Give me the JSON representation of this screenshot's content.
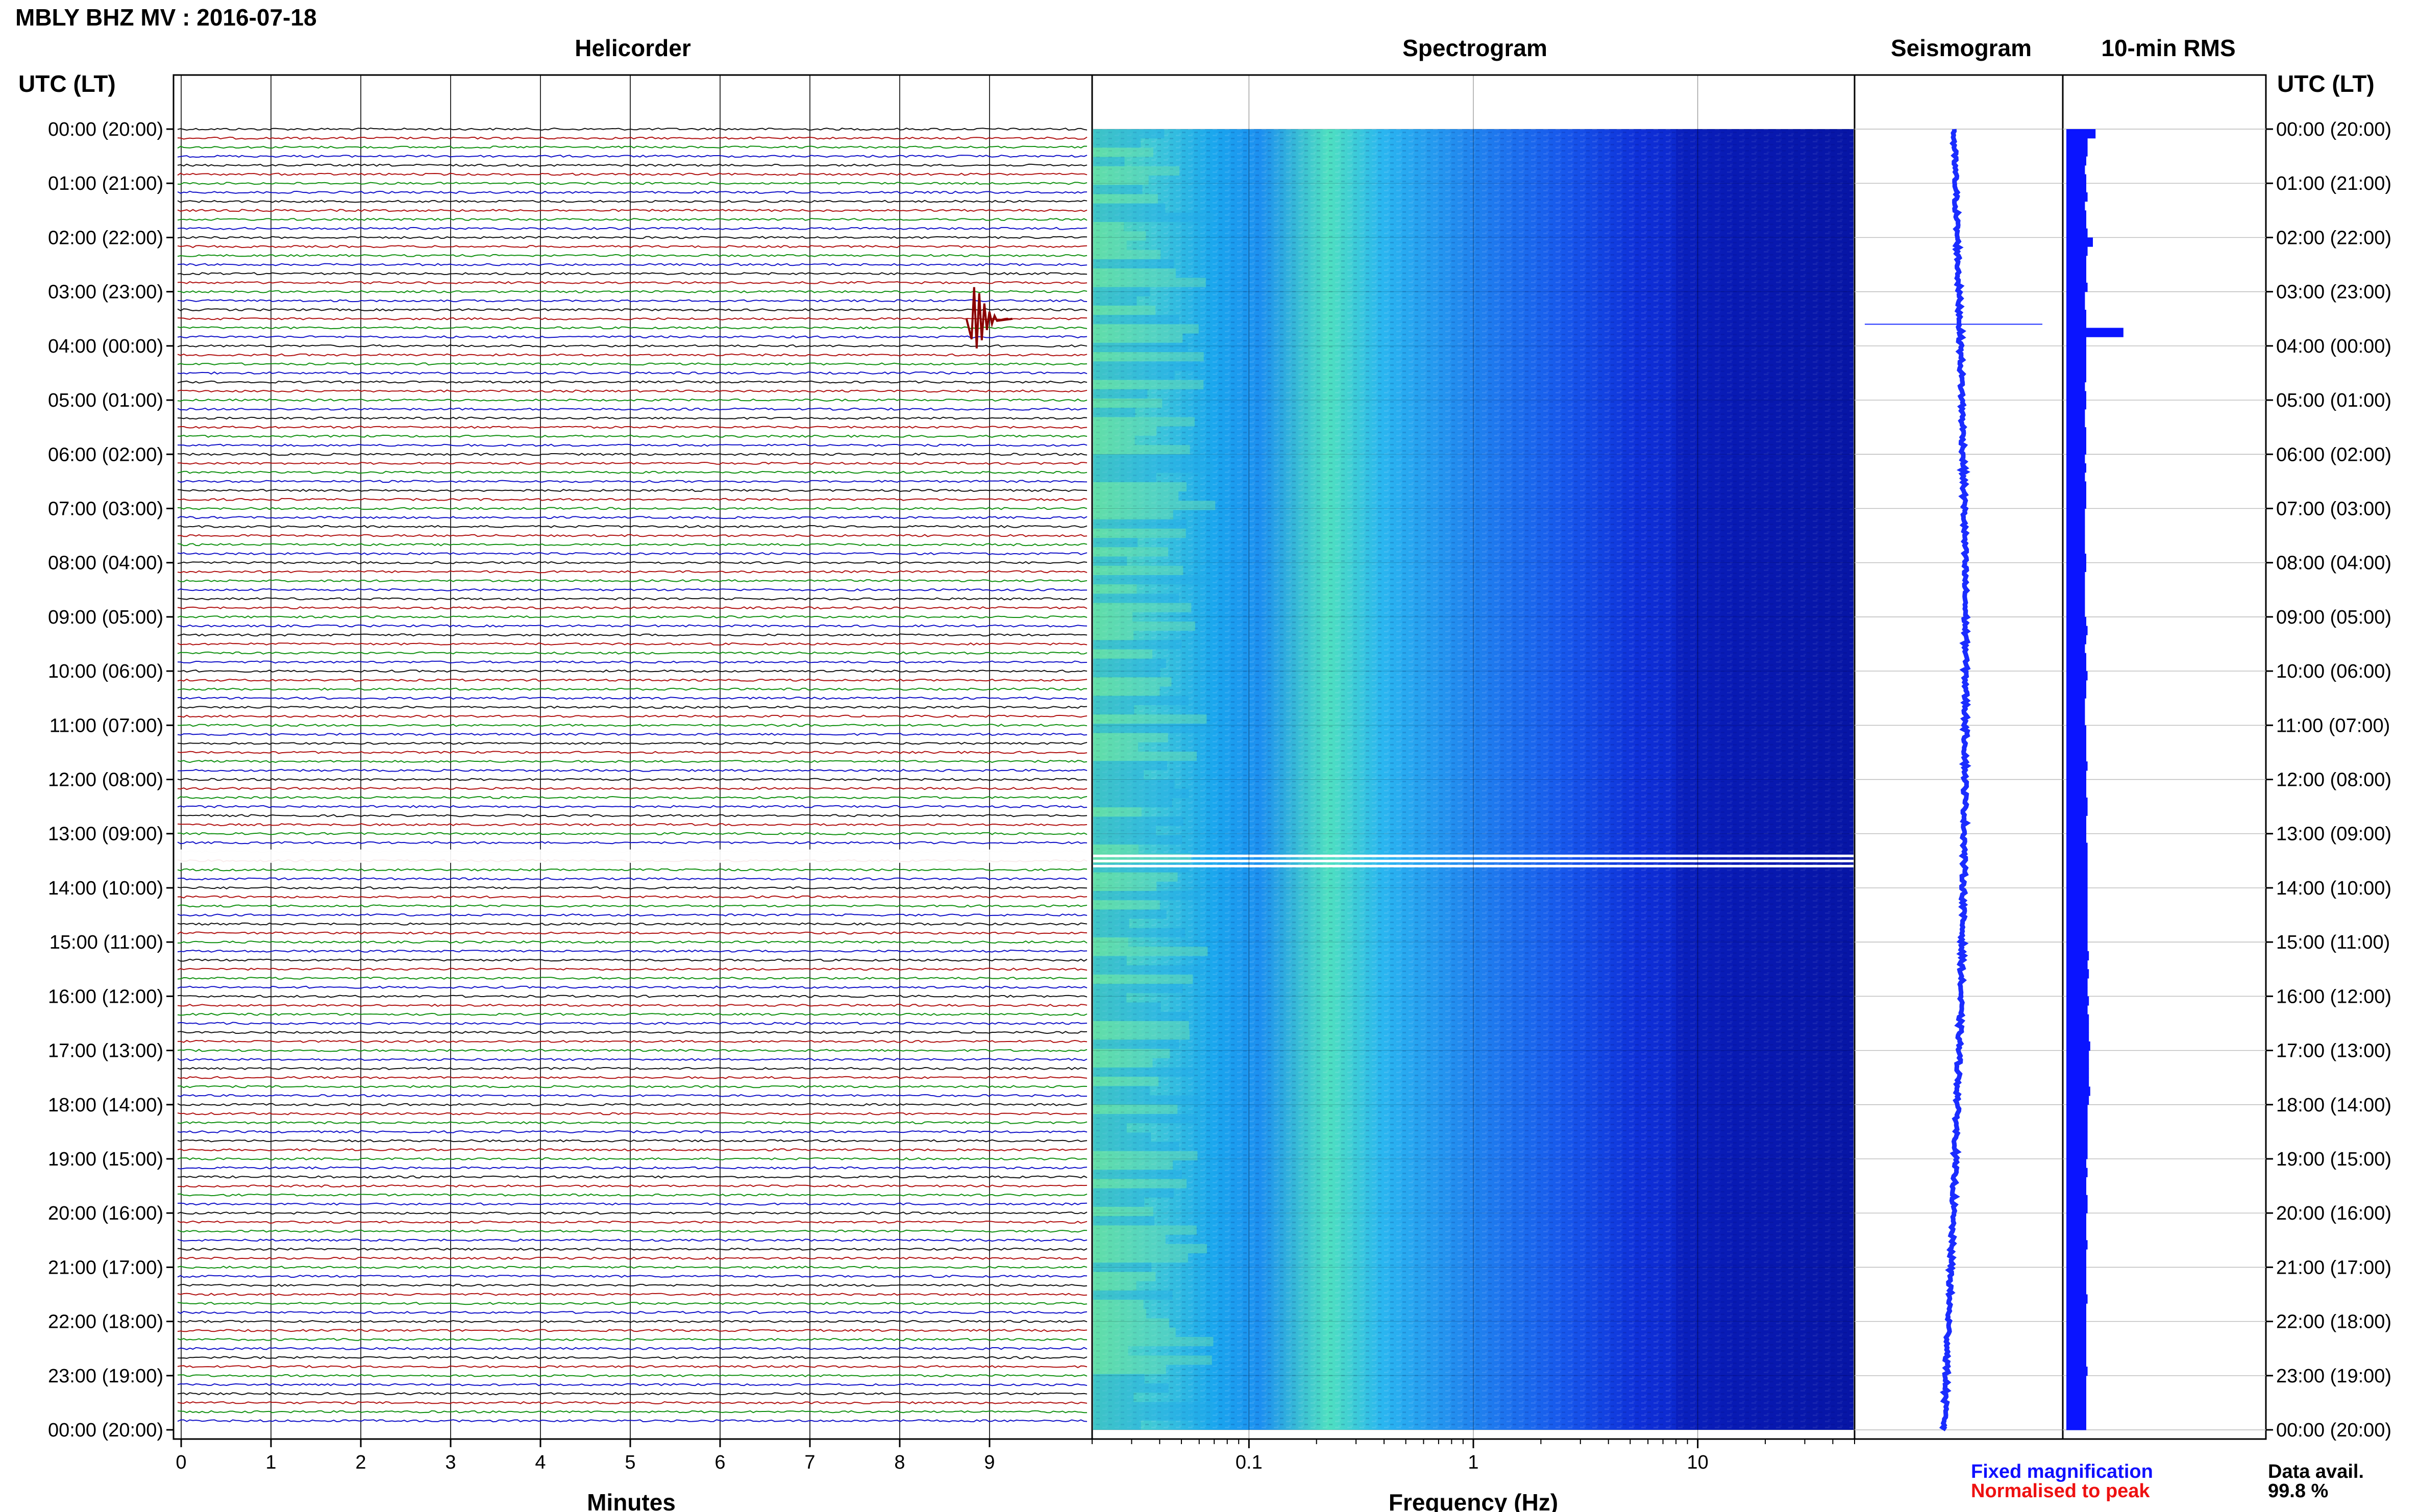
{
  "header": {
    "title": "MBLY BHZ MV : 2016-07-18"
  },
  "panels": {
    "helicorder": "Helicorder",
    "spectrogram": "Spectrogram",
    "seismogram": "Seismogram",
    "rms": "10-min RMS"
  },
  "axes": {
    "left_time_label": "UTC (LT)",
    "right_time_label": "UTC (LT)",
    "helicorder_xlabel": "Minutes",
    "spectrogram_xlabel": "Frequency (Hz)"
  },
  "legend": {
    "fixed": "Fixed magnification",
    "normalised": "Normalised to peak",
    "avail_label": "Data avail.",
    "avail_value": "99.8 %"
  },
  "colors": {
    "fixed": "#1010ff",
    "normalised": "#ee1111",
    "trace_cycle": [
      "#111111",
      "#b01010",
      "#109010",
      "#1010c8"
    ],
    "rms": "#0a14ff",
    "seismo": "#1a2cff"
  },
  "chart_data": [
    {
      "type": "line",
      "title": "Helicorder",
      "xlabel": "Minutes",
      "ylabel": "UTC (LT)",
      "x_ticks": [
        0,
        1,
        2,
        3,
        4,
        5,
        6,
        7,
        8,
        9
      ],
      "xlim": [
        0,
        10
      ],
      "y_tick_labels": [
        "00:00 (20:00)",
        "01:00 (21:00)",
        "02:00 (22:00)",
        "03:00 (23:00)",
        "04:00 (00:00)",
        "05:00 (01:00)",
        "06:00 (02:00)",
        "07:00 (03:00)",
        "08:00 (04:00)",
        "09:00 (05:00)",
        "10:00 (06:00)",
        "11:00 (07:00)",
        "12:00 (08:00)",
        "13:00 (09:00)",
        "14:00 (10:00)",
        "15:00 (11:00)",
        "16:00 (12:00)",
        "17:00 (13:00)",
        "18:00 (14:00)",
        "19:00 (15:00)",
        "20:00 (16:00)",
        "21:00 (17:00)",
        "22:00 (18:00)",
        "23:00 (19:00)",
        "00:00 (20:00)"
      ],
      "lines_per_hour": 6,
      "grid": true,
      "events": [
        {
          "hour": 3.5,
          "minute": 8.8,
          "amplitude": "large"
        }
      ],
      "gap": {
        "hour_start": 13.33,
        "hour_end": 13.5
      }
    },
    {
      "type": "heatmap",
      "title": "Spectrogram",
      "xlabel": "Frequency (Hz)",
      "x_scale": "log",
      "xlim": [
        0.02,
        50
      ],
      "x_tick_labels": [
        "0.1",
        "1",
        "10"
      ],
      "x_tick_values": [
        0.1,
        1,
        10
      ],
      "ylim_hours": [
        0,
        24
      ],
      "gap": {
        "hour_start": 13.33,
        "hour_end": 13.5
      }
    },
    {
      "type": "line",
      "title": "Seismogram",
      "ylim_hours": [
        0,
        24
      ],
      "spike_hour": 3.6
    },
    {
      "type": "bar",
      "title": "10-min RMS",
      "orientation": "horizontal",
      "ylim_hours": [
        0,
        24
      ],
      "values": [
        2.2,
        1.6,
        1.6,
        1.5,
        1.4,
        1.5,
        1.5,
        1.6,
        1.4,
        1.5,
        1.5,
        1.6,
        2.0,
        1.6,
        1.5,
        1.5,
        1.5,
        1.6,
        1.4,
        1.4,
        1.5,
        1.5,
        4.3,
        1.5,
        1.5,
        1.5,
        1.5,
        1.5,
        1.4,
        1.5,
        1.5,
        1.4,
        1.4,
        1.5,
        1.5,
        1.5,
        1.4,
        1.5,
        1.4,
        1.5,
        1.5,
        1.5,
        1.4,
        1.4,
        1.4,
        1.4,
        1.4,
        1.5,
        1.5,
        1.4,
        1.4,
        1.4,
        1.4,
        1.4,
        1.5,
        1.6,
        1.5,
        1.4,
        1.5,
        1.5,
        1.6,
        1.5,
        1.5,
        1.4,
        1.4,
        1.4,
        1.5,
        1.5,
        1.5,
        1.5,
        1.6,
        1.5,
        1.5,
        1.5,
        1.6,
        1.6,
        1.5,
        1.5,
        1.5,
        1.6,
        1.6,
        1.6,
        1.6,
        1.6,
        1.6,
        1.6,
        1.6,
        1.6,
        1.6,
        1.6,
        1.6,
        1.7,
        1.6,
        1.7,
        1.6,
        1.6,
        1.7,
        1.6,
        1.7,
        1.7,
        1.7,
        1.8,
        1.7,
        1.7,
        1.7,
        1.7,
        1.8,
        1.7,
        1.6,
        1.6,
        1.6,
        1.6,
        1.6,
        1.6,
        1.5,
        1.6,
        1.5,
        1.5,
        1.6,
        1.6,
        1.5,
        1.5,
        1.5,
        1.6,
        1.5,
        1.5,
        1.5,
        1.5,
        1.5,
        1.6,
        1.5,
        1.5,
        1.5,
        1.5,
        1.5,
        1.5,
        1.5,
        1.6,
        1.5,
        1.5,
        1.5,
        1.5,
        1.5,
        1.5
      ]
    }
  ]
}
